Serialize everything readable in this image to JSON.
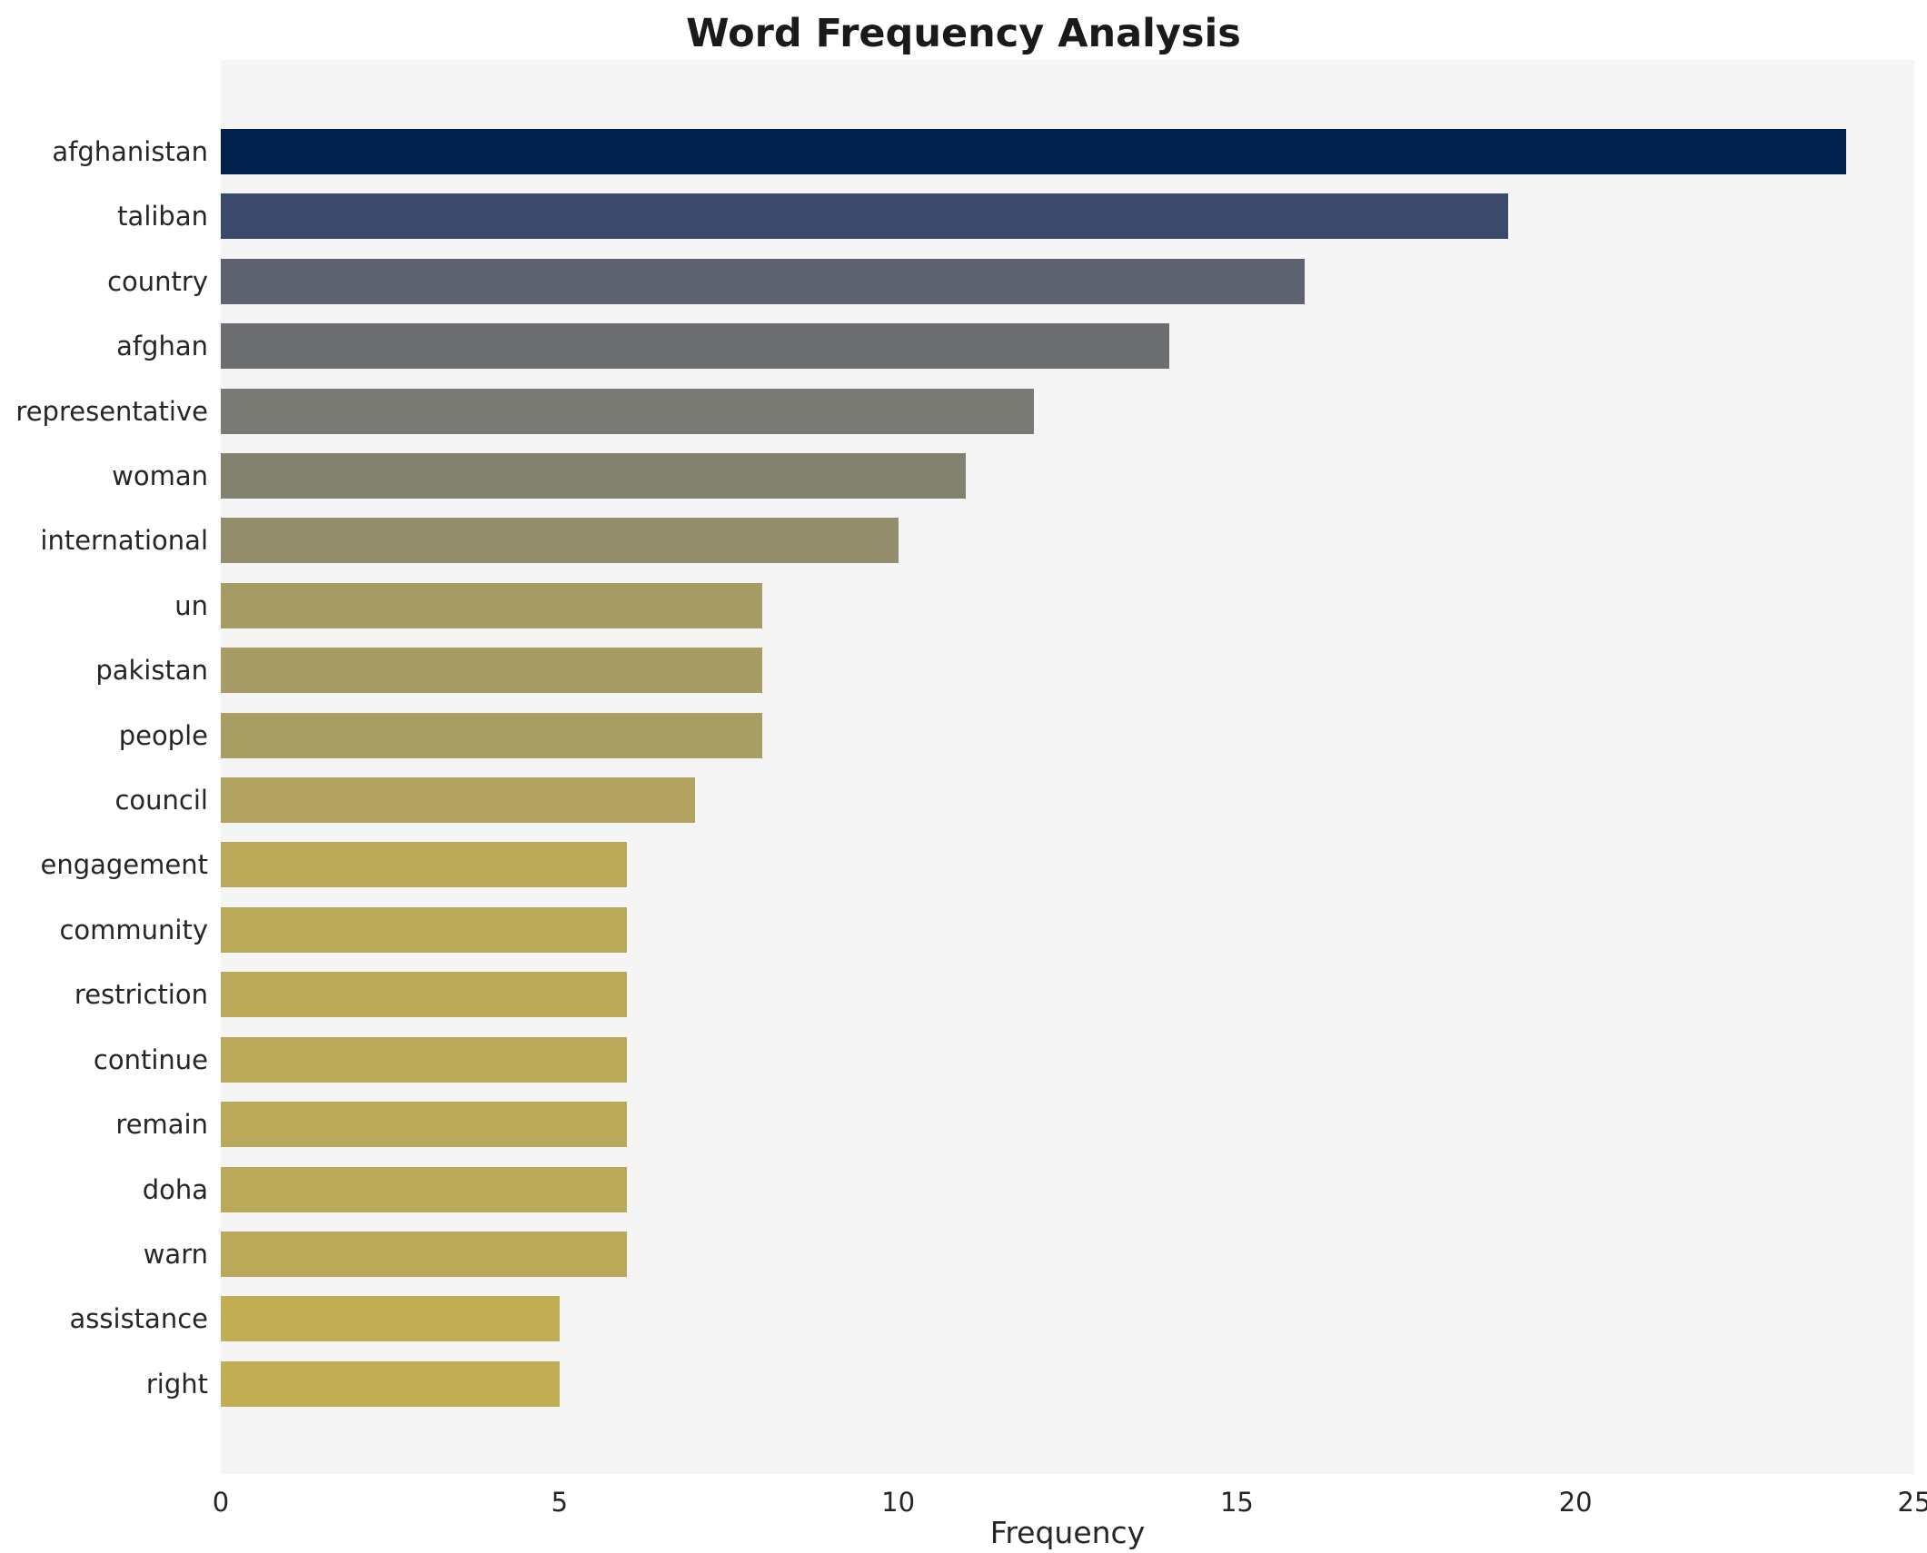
{
  "chart_data": {
    "type": "bar",
    "orientation": "horizontal",
    "title": "Word Frequency Analysis",
    "xlabel": "Frequency",
    "ylabel": "",
    "xlim": [
      0,
      25
    ],
    "xticks": [
      0,
      5,
      10,
      15,
      20,
      25
    ],
    "grid": false,
    "plot_background": "#f5f5f6",
    "categories": [
      "afghanistan",
      "taliban",
      "country",
      "afghan",
      "representative",
      "woman",
      "international",
      "un",
      "pakistan",
      "people",
      "council",
      "engagement",
      "community",
      "restriction",
      "continue",
      "remain",
      "doha",
      "warn",
      "assistance",
      "right"
    ],
    "values": [
      24,
      19,
      16,
      14,
      12,
      11,
      10,
      8,
      8,
      8,
      7,
      6,
      6,
      6,
      6,
      6,
      6,
      6,
      5,
      5
    ],
    "bar_colors": [
      "#00214d",
      "#3b4a6b",
      "#5c6270",
      "#6c6e72",
      "#797a73",
      "#838270",
      "#938d6b",
      "#a59b64",
      "#a79c63",
      "#a89d62",
      "#b1a35f",
      "#bba95a",
      "#bba95a",
      "#bba95a",
      "#bba95a",
      "#bba95a",
      "#bba95a",
      "#bba95a",
      "#c1ae55",
      "#c1ae55"
    ]
  }
}
